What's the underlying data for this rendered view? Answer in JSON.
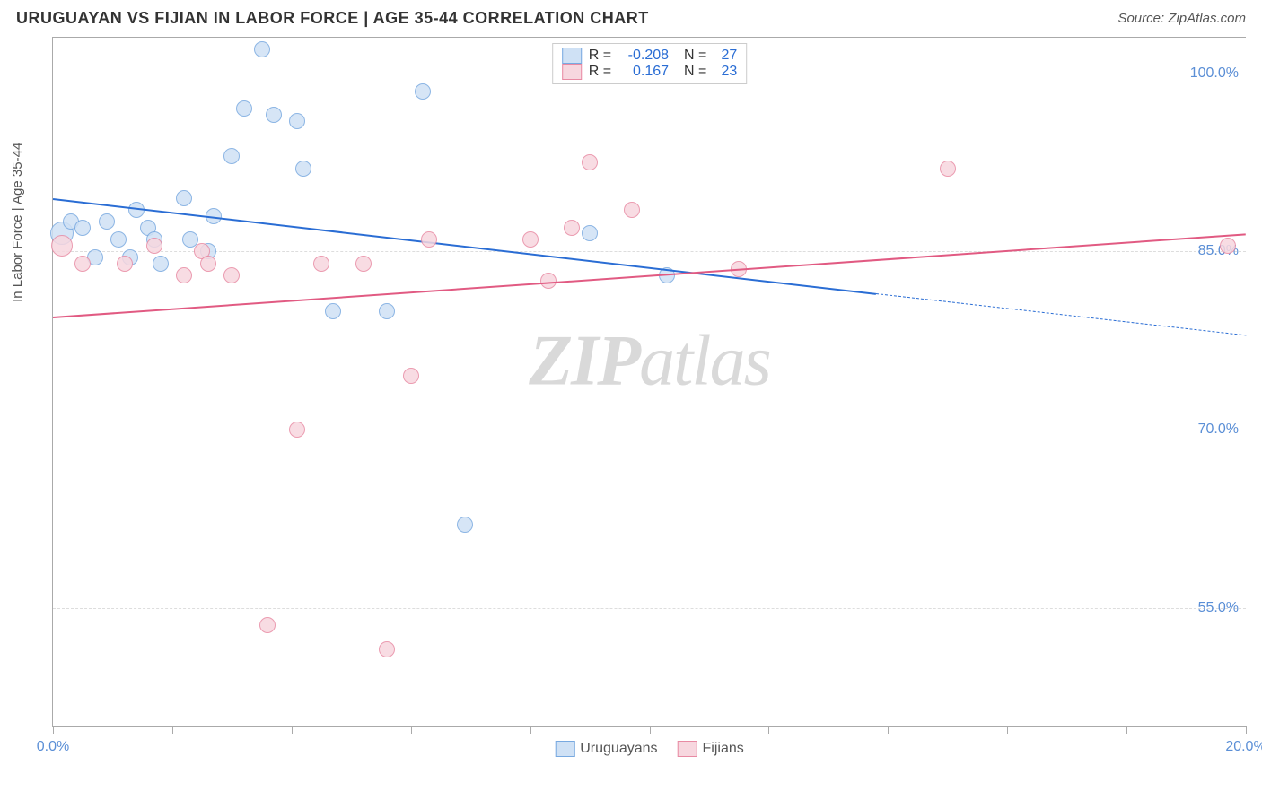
{
  "header": {
    "title": "URUGUAYAN VS FIJIAN IN LABOR FORCE | AGE 35-44 CORRELATION CHART",
    "source": "Source: ZipAtlas.com"
  },
  "watermark": {
    "zip": "ZIP",
    "rest": "atlas"
  },
  "chart": {
    "type": "scatter",
    "background_color": "#ffffff",
    "grid_color": "#dddddd",
    "border_color": "#aaaaaa",
    "ylabel": "In Labor Force | Age 35-44",
    "ylabel_fontsize": 15,
    "label_color": "#555555",
    "tick_fontsize": 16,
    "tick_color": "#5b8fd6",
    "xlim": [
      0.0,
      20.0
    ],
    "ylim": [
      45.0,
      103.0
    ],
    "xtick_step": 2.0,
    "xtick_labels": {
      "0": "0.0%",
      "20": "20.0%"
    },
    "ytick_values": [
      55.0,
      70.0,
      85.0,
      100.0
    ],
    "ytick_labels": [
      "55.0%",
      "70.0%",
      "85.0%",
      "100.0%"
    ],
    "marker_radius": 9,
    "marker_border_width": 1.5,
    "series": [
      {
        "name": "Uruguayans",
        "fill": "#cfe1f5",
        "stroke": "#78a9e0",
        "line_color": "#2a6dd4",
        "R": "-0.208",
        "N": "27",
        "trend": {
          "x0": 0.0,
          "y0": 89.5,
          "x1": 13.8,
          "y1": 81.5,
          "dash_to_x": 20.0,
          "dash_to_y": 78.0
        },
        "points": [
          {
            "x": 0.15,
            "y": 86.5,
            "r": 13
          },
          {
            "x": 0.3,
            "y": 87.5
          },
          {
            "x": 0.5,
            "y": 87.0
          },
          {
            "x": 0.7,
            "y": 84.5
          },
          {
            "x": 0.9,
            "y": 87.5
          },
          {
            "x": 1.1,
            "y": 86.0
          },
          {
            "x": 1.3,
            "y": 84.5
          },
          {
            "x": 1.4,
            "y": 88.5
          },
          {
            "x": 1.6,
            "y": 87.0
          },
          {
            "x": 1.7,
            "y": 86.0
          },
          {
            "x": 1.8,
            "y": 84.0
          },
          {
            "x": 2.2,
            "y": 89.5
          },
          {
            "x": 2.3,
            "y": 86.0
          },
          {
            "x": 2.6,
            "y": 85.0
          },
          {
            "x": 2.7,
            "y": 88.0
          },
          {
            "x": 3.0,
            "y": 93.0
          },
          {
            "x": 3.2,
            "y": 97.0
          },
          {
            "x": 3.5,
            "y": 102.0
          },
          {
            "x": 3.7,
            "y": 96.5
          },
          {
            "x": 4.1,
            "y": 96.0
          },
          {
            "x": 4.2,
            "y": 92.0
          },
          {
            "x": 4.7,
            "y": 80.0
          },
          {
            "x": 5.6,
            "y": 80.0
          },
          {
            "x": 6.2,
            "y": 98.5
          },
          {
            "x": 6.9,
            "y": 62.0
          },
          {
            "x": 9.0,
            "y": 86.5
          },
          {
            "x": 10.3,
            "y": 83.0
          }
        ]
      },
      {
        "name": "Fijians",
        "fill": "#f7d7df",
        "stroke": "#e88aa3",
        "line_color": "#e15a82",
        "R": "0.167",
        "N": "23",
        "trend": {
          "x0": 0.0,
          "y0": 79.5,
          "x1": 20.0,
          "y1": 86.5
        },
        "points": [
          {
            "x": 0.15,
            "y": 85.5,
            "r": 12
          },
          {
            "x": 0.5,
            "y": 84.0
          },
          {
            "x": 1.2,
            "y": 84.0
          },
          {
            "x": 1.7,
            "y": 85.5
          },
          {
            "x": 2.2,
            "y": 83.0
          },
          {
            "x": 2.5,
            "y": 85.0
          },
          {
            "x": 2.6,
            "y": 84.0
          },
          {
            "x": 3.0,
            "y": 83.0
          },
          {
            "x": 3.6,
            "y": 53.5
          },
          {
            "x": 4.1,
            "y": 70.0
          },
          {
            "x": 4.5,
            "y": 84.0
          },
          {
            "x": 5.2,
            "y": 84.0
          },
          {
            "x": 5.6,
            "y": 51.5
          },
          {
            "x": 6.0,
            "y": 74.5
          },
          {
            "x": 6.3,
            "y": 86.0
          },
          {
            "x": 8.0,
            "y": 86.0
          },
          {
            "x": 8.3,
            "y": 82.5
          },
          {
            "x": 8.7,
            "y": 87.0
          },
          {
            "x": 9.0,
            "y": 92.5
          },
          {
            "x": 9.7,
            "y": 88.5
          },
          {
            "x": 11.5,
            "y": 83.5
          },
          {
            "x": 15.0,
            "y": 92.0
          },
          {
            "x": 19.7,
            "y": 85.5
          }
        ]
      }
    ]
  }
}
